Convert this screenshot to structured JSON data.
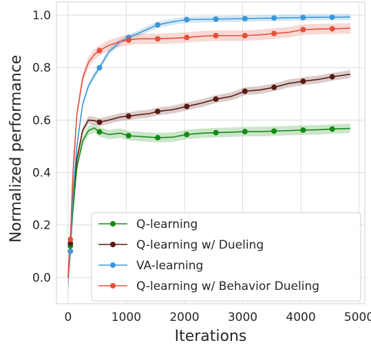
{
  "chart_data": {
    "type": "line",
    "title": "",
    "xlabel": "Iterations",
    "ylabel": "Normalized performance",
    "xlim": [
      -200,
      5100
    ],
    "ylim": [
      -0.1,
      1.05
    ],
    "xticks": [
      0,
      1000,
      2000,
      3000,
      4000,
      5000
    ],
    "xtick_labels": [
      "0",
      "1000",
      "2000",
      "3000",
      "4000",
      "5000"
    ],
    "yticks": [
      0.0,
      0.2,
      0.4,
      0.6,
      0.8,
      1.0
    ],
    "ytick_labels": [
      "0.0",
      "0.2",
      "0.4",
      "0.6",
      "0.8",
      "1.0"
    ],
    "grid": true,
    "legend_position": "lower-right",
    "series": [
      {
        "name": "Q-learning",
        "color": "#138a13",
        "band": 0.018,
        "x": [
          0,
          40,
          80,
          150,
          250,
          350,
          450,
          540,
          700,
          900,
          1050,
          1200,
          1400,
          1540,
          1800,
          2040,
          2300,
          2540,
          2800,
          3050,
          3300,
          3540,
          3800,
          4050,
          4300,
          4540,
          4850
        ],
        "y": [
          0.0,
          0.12,
          0.25,
          0.42,
          0.52,
          0.56,
          0.57,
          0.555,
          0.545,
          0.55,
          0.54,
          0.538,
          0.535,
          0.533,
          0.535,
          0.545,
          0.55,
          0.552,
          0.554,
          0.556,
          0.556,
          0.558,
          0.56,
          0.562,
          0.563,
          0.566,
          0.568
        ],
        "marker_x": [
          40,
          540,
          1040,
          1540,
          2040,
          2540,
          3040,
          3540,
          4040,
          4540
        ]
      },
      {
        "name": "Q-learning w/ Dueling",
        "color": "#5a1a14",
        "band": 0.015,
        "x": [
          0,
          40,
          80,
          150,
          250,
          350,
          450,
          540,
          700,
          900,
          1040,
          1200,
          1400,
          1540,
          1800,
          2040,
          2300,
          2540,
          2800,
          3040,
          3300,
          3540,
          3800,
          4040,
          4300,
          4540,
          4850
        ],
        "y": [
          0.0,
          0.13,
          0.3,
          0.45,
          0.56,
          0.6,
          0.598,
          0.592,
          0.6,
          0.612,
          0.615,
          0.62,
          0.625,
          0.633,
          0.64,
          0.652,
          0.665,
          0.68,
          0.69,
          0.71,
          0.715,
          0.725,
          0.74,
          0.748,
          0.755,
          0.765,
          0.775
        ],
        "marker_x": [
          40,
          540,
          1040,
          1540,
          2040,
          2540,
          3040,
          3540,
          4040,
          4540
        ]
      },
      {
        "name": "VA-learning",
        "color": "#3a97d8",
        "band": 0.012,
        "x": [
          0,
          40,
          80,
          150,
          250,
          350,
          450,
          540,
          700,
          900,
          1040,
          1200,
          1400,
          1540,
          1800,
          2040,
          2300,
          2540,
          2800,
          3040,
          3300,
          3540,
          3800,
          4040,
          4300,
          4540,
          4850
        ],
        "y": [
          0.0,
          0.1,
          0.3,
          0.5,
          0.66,
          0.73,
          0.77,
          0.8,
          0.86,
          0.9,
          0.915,
          0.93,
          0.95,
          0.963,
          0.975,
          0.983,
          0.984,
          0.985,
          0.986,
          0.987,
          0.988,
          0.989,
          0.99,
          0.991,
          0.992,
          0.992,
          0.993
        ],
        "marker_x": [
          40,
          540,
          1040,
          1540,
          2040,
          2540,
          3040,
          3540,
          4040,
          4540
        ]
      },
      {
        "name": "Q-learning w/ Behavior Dueling",
        "color": "#e3513c",
        "band": 0.02,
        "x": [
          0,
          40,
          80,
          150,
          250,
          350,
          450,
          540,
          700,
          900,
          1040,
          1200,
          1400,
          1540,
          1800,
          2040,
          2300,
          2540,
          2800,
          3040,
          3300,
          3540,
          3800,
          4040,
          4300,
          4540,
          4850
        ],
        "y": [
          0.0,
          0.145,
          0.38,
          0.62,
          0.76,
          0.82,
          0.85,
          0.865,
          0.885,
          0.9,
          0.905,
          0.91,
          0.91,
          0.91,
          0.912,
          0.915,
          0.92,
          0.922,
          0.922,
          0.922,
          0.925,
          0.93,
          0.935,
          0.945,
          0.947,
          0.948,
          0.95
        ],
        "marker_x": [
          40,
          540,
          1040,
          1540,
          2040,
          2540,
          3040,
          3540,
          4040,
          4540
        ]
      }
    ]
  }
}
